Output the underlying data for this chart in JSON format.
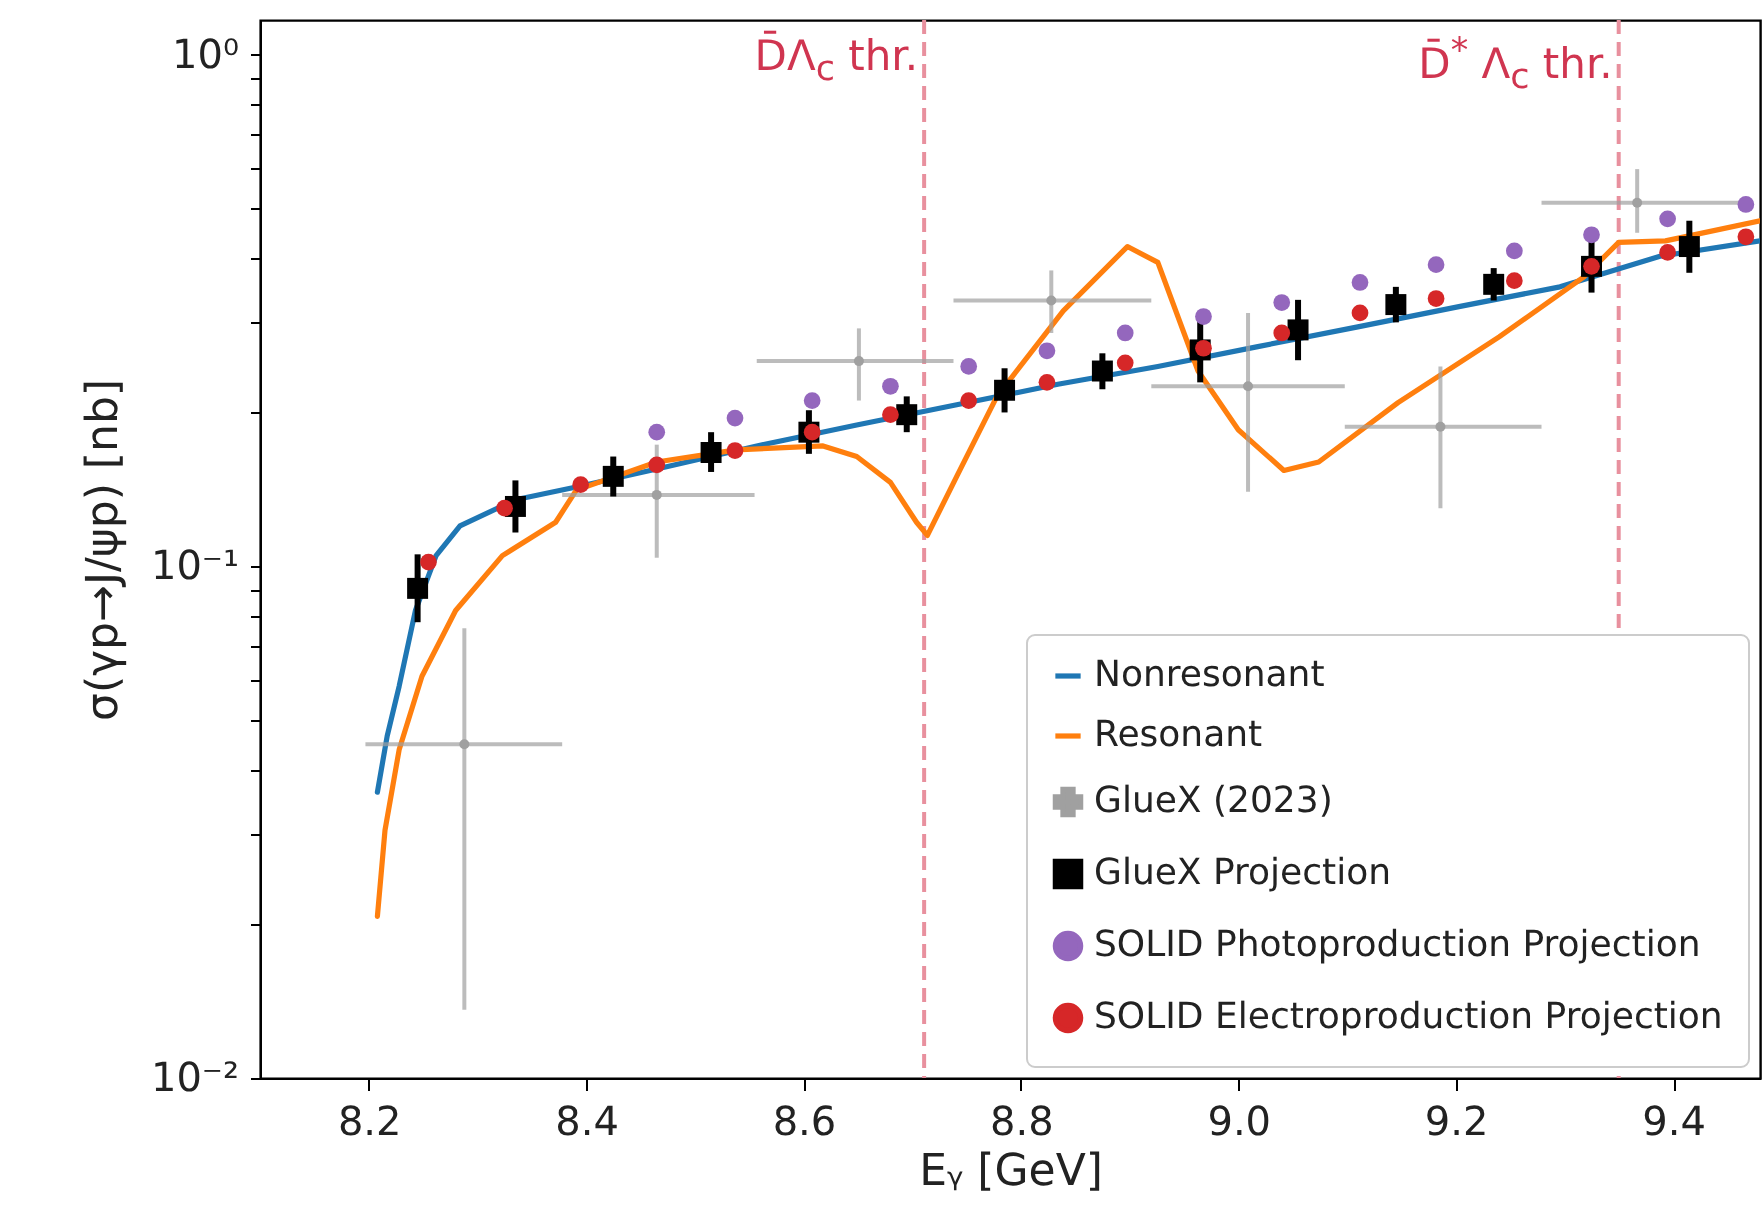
{
  "chart_data": {
    "type": "scatter",
    "xlabel": "Eᵧ [GeV]",
    "ylabel": "σ(γp→J/ψp) [nb]",
    "log": "y",
    "legend": "bottom right",
    "xlim": [
      8.1,
      9.48
    ],
    "xticks": [
      8.2,
      8.4,
      8.6,
      8.8,
      {
        "value": 9,
        "label": "9.0"
      },
      9.2,
      9.4
    ],
    "ylim": [
      0.01,
      1.17
    ],
    "yticks": [
      {
        "value": 0.01,
        "label": "10⁻²"
      },
      {
        "value": 0.02,
        "label": null
      },
      {
        "value": 0.03,
        "label": null
      },
      {
        "value": 0.04,
        "label": null
      },
      {
        "value": 0.05,
        "label": null
      },
      {
        "value": 0.06,
        "label": null
      },
      {
        "value": 0.07,
        "label": null
      },
      {
        "value": 0.08,
        "label": null
      },
      {
        "value": 0.09,
        "label": null
      },
      {
        "value": 0.1,
        "label": "10⁻¹"
      },
      {
        "value": 0.2,
        "label": null
      },
      {
        "value": 0.3,
        "label": null
      },
      {
        "value": 0.4,
        "label": null
      },
      {
        "value": 0.5,
        "label": null
      },
      {
        "value": 0.6,
        "label": null
      },
      {
        "value": 0.7,
        "label": null
      },
      {
        "value": 0.8,
        "label": null
      },
      {
        "value": 0.9,
        "label": null
      },
      {
        "value": 1,
        "label": "10⁰"
      }
    ],
    "ref_lines": [
      {
        "axis": "x",
        "value": 8.711,
        "label": "D̄Λ$_{c}$ thr.",
        "color": "#e8909e",
        "line_style": "dashed"
      },
      {
        "axis": "x",
        "value": 9.35,
        "label": "D̄$^{*}$ Λ$_{c}$ thr.",
        "color": "#e8909e",
        "line_style": "dashed"
      }
    ],
    "series": [
      {
        "name": "Nonresonant",
        "type": "line",
        "color": "#1f77b4",
        "x": [
          8.208,
          8.217,
          8.228,
          8.243,
          8.262,
          8.284,
          8.335,
          8.391,
          8.465,
          8.557,
          8.649,
          8.741,
          8.834,
          8.926,
          9.018,
          9.11,
          9.203,
          9.296,
          9.388,
          9.48
        ],
        "values": [
          0.0362,
          0.0466,
          0.0583,
          0.082,
          0.105,
          0.12,
          0.135,
          0.143,
          0.155,
          0.172,
          0.189,
          0.207,
          0.227,
          0.246,
          0.269,
          0.294,
          0.322,
          0.352,
          0.404,
          0.433
        ]
      },
      {
        "name": "Resonant",
        "type": "line",
        "color": "#ff7f0e",
        "x": [
          8.208,
          8.215,
          8.228,
          8.249,
          8.28,
          8.323,
          8.372,
          8.391,
          8.465,
          8.538,
          8.618,
          8.649,
          8.68,
          8.704,
          8.714,
          8.741,
          8.778,
          8.839,
          8.898,
          8.926,
          8.963,
          9.0,
          9.042,
          9.074,
          9.147,
          9.24,
          9.318,
          9.35,
          9.393,
          9.48
        ],
        "values": [
          0.0207,
          0.0305,
          0.0438,
          0.061,
          0.082,
          0.105,
          0.122,
          0.141,
          0.16,
          0.169,
          0.172,
          0.164,
          0.146,
          0.122,
          0.115,
          0.15,
          0.215,
          0.316,
          0.422,
          0.393,
          0.241,
          0.185,
          0.154,
          0.16,
          0.209,
          0.281,
          0.368,
          0.43,
          0.433,
          0.474
        ]
      },
      {
        "name": "GlueX (2023)",
        "color": "#a0a0a0",
        "marker": "circle",
        "x": [
          8.288,
          8.465,
          8.651,
          8.828,
          9.009,
          9.186,
          9.367
        ],
        "values": [
          0.0449,
          0.138,
          0.252,
          0.331,
          0.225,
          0.1875,
          0.514
        ],
        "errors": [
          [
            0.0136,
            0.0757
          ],
          [
            0.104,
            0.173
          ],
          [
            0.211,
            0.292
          ],
          [
            0.286,
            0.379
          ],
          [
            0.14,
            0.313
          ],
          [
            0.13,
            0.246
          ],
          [
            0.449,
            0.598
          ]
        ],
        "xerrors": [
          [
            8.197,
            8.378
          ],
          [
            8.378,
            8.555
          ],
          [
            8.557,
            8.738
          ],
          [
            8.738,
            8.92
          ],
          [
            8.92,
            9.098
          ],
          [
            9.098,
            9.279
          ],
          [
            9.279,
            9.461
          ]
        ]
      },
      {
        "name": "GlueX Projection",
        "color": "#000000",
        "marker": "square",
        "x": [
          8.245,
          8.335,
          8.425,
          8.515,
          8.605,
          8.695,
          8.785,
          8.875,
          8.965,
          9.055,
          9.145,
          9.235,
          9.325,
          9.415
        ],
        "values": [
          0.0906,
          0.131,
          0.15,
          0.167,
          0.183,
          0.198,
          0.221,
          0.241,
          0.265,
          0.29,
          0.325,
          0.356,
          0.386,
          0.422
        ],
        "errors": [
          [
            0.0778,
            0.1056
          ],
          [
            0.1165,
            0.1473
          ],
          [
            0.137,
            0.164
          ],
          [
            0.153,
            0.183
          ],
          [
            0.166,
            0.202
          ],
          [
            0.183,
            0.215
          ],
          [
            0.2,
            0.244
          ],
          [
            0.222,
            0.261
          ],
          [
            0.229,
            0.306
          ],
          [
            0.253,
            0.332
          ],
          [
            0.3,
            0.352
          ],
          [
            0.331,
            0.383
          ],
          [
            0.343,
            0.434
          ],
          [
            0.375,
            0.474
          ]
        ]
      },
      {
        "name": "SOLID Photoproduction Projection",
        "color": "#9467bd",
        "marker": "circle",
        "x": [
          8.465,
          8.537,
          8.608,
          8.68,
          8.752,
          8.824,
          8.896,
          8.968,
          9.04,
          9.112,
          9.182,
          9.254,
          9.325,
          9.395,
          9.467
        ],
        "values": [
          0.183,
          0.195,
          0.211,
          0.225,
          0.246,
          0.264,
          0.286,
          0.308,
          0.328,
          0.359,
          0.389,
          0.414,
          0.445,
          0.478,
          0.51
        ]
      },
      {
        "name": "SOLID Electroproduction Projection",
        "color": "#d62728",
        "marker": "circle",
        "x": [
          8.255,
          8.325,
          8.395,
          8.465,
          8.537,
          8.608,
          8.68,
          8.752,
          8.824,
          8.896,
          8.968,
          9.04,
          9.112,
          9.182,
          9.254,
          9.325,
          9.395,
          9.467
        ],
        "values": [
          0.102,
          0.13,
          0.1445,
          0.158,
          0.1685,
          0.183,
          0.198,
          0.211,
          0.229,
          0.25,
          0.267,
          0.286,
          0.313,
          0.334,
          0.362,
          0.386,
          0.411,
          0.441
        ]
      }
    ]
  }
}
